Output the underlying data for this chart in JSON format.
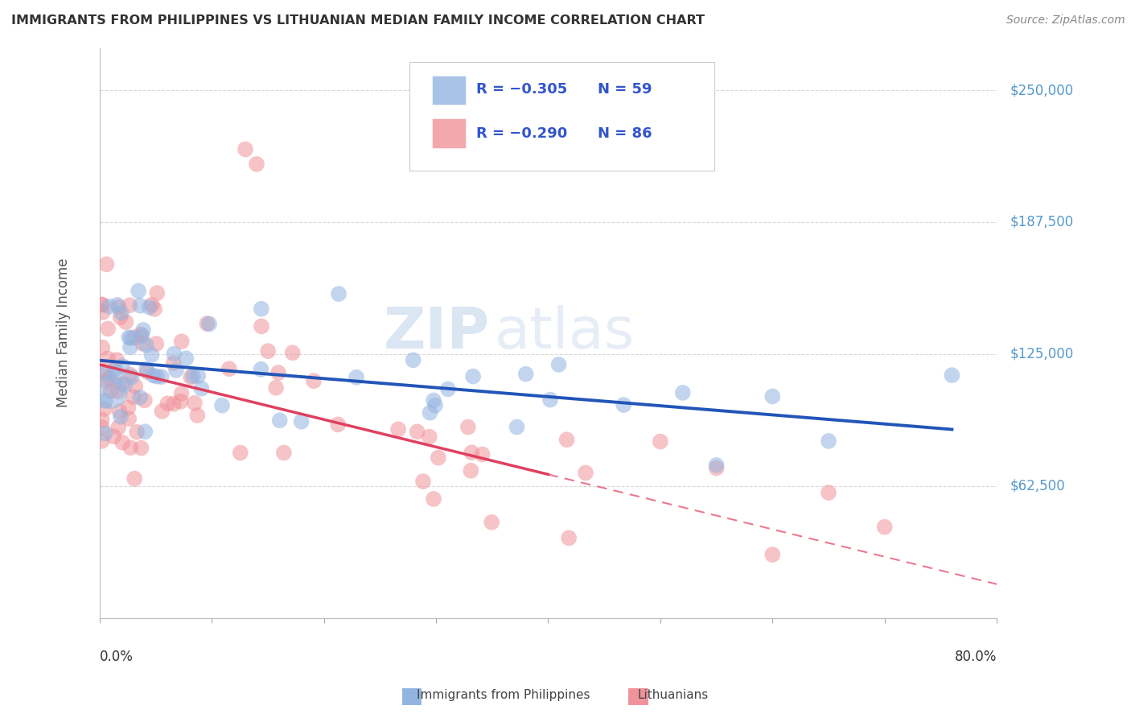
{
  "title": "IMMIGRANTS FROM PHILIPPINES VS LITHUANIAN MEDIAN FAMILY INCOME CORRELATION CHART",
  "source": "Source: ZipAtlas.com",
  "ylabel": "Median Family Income",
  "ytick_labels": [
    "$62,500",
    "$125,000",
    "$187,500",
    "$250,000"
  ],
  "ytick_values": [
    62500,
    125000,
    187500,
    250000
  ],
  "ymin": 0,
  "ymax": 270000,
  "xmin": 0.0,
  "xmax": 0.8,
  "series1_label": "Immigrants from Philippines",
  "series2_label": "Lithuanians",
  "series1_color": "#92b4e0",
  "series2_color": "#f0929a",
  "series1_line_color": "#2255b8",
  "series2_line_color": "#e04060",
  "background_color": "#ffffff",
  "grid_color": "#d8d8d8",
  "legend_r1": "R = −0.305",
  "legend_n1": "N = 59",
  "legend_r2": "R = −0.290",
  "legend_n2": "N = 86",
  "legend_color_r": "#3355cc",
  "legend_color_n": "#3355cc",
  "right_label_color": "#5599cc",
  "watermark_color": "#c5d8ec",
  "title_color": "#333333",
  "source_color": "#888888",
  "ylabel_color": "#555555",
  "xlabel_color": "#333333"
}
